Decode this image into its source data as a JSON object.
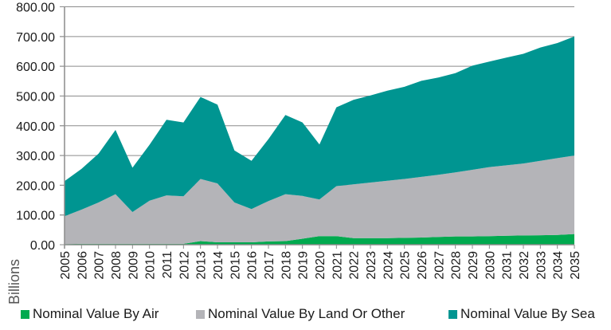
{
  "chart_data": {
    "type": "area",
    "stacked": true,
    "title": "",
    "xlabel": "",
    "ylabel": "Billions",
    "ylim": [
      0,
      800
    ],
    "yticks": [
      "0.00",
      "100.00",
      "200.00",
      "300.00",
      "400.00",
      "500.00",
      "600.00",
      "700.00",
      "800.00"
    ],
    "ytick_values": [
      0,
      100,
      200,
      300,
      400,
      500,
      600,
      700,
      800
    ],
    "grid": true,
    "legend_position": "bottom",
    "categories": [
      "2005",
      "2006",
      "2007",
      "2008",
      "2009",
      "2010",
      "2011",
      "2012",
      "2013",
      "2014",
      "2015",
      "2016",
      "2017",
      "2018",
      "2019",
      "2020",
      "2021",
      "2022",
      "2023",
      "2024",
      "2025",
      "2026",
      "2027",
      "2028",
      "2029",
      "2030",
      "2031",
      "2032",
      "2033",
      "2034",
      "2035"
    ],
    "series": [
      {
        "name": "Nominal Value By Air",
        "color": "#00AA4F",
        "values": [
          2,
          3,
          3,
          3,
          3,
          3,
          3,
          3,
          12,
          8,
          8,
          8,
          11,
          12,
          20,
          29,
          29,
          22,
          22,
          22,
          23,
          24,
          26,
          28,
          28,
          29,
          30,
          31,
          32,
          33,
          36
        ]
      },
      {
        "name": "Nominal Value By Land Or Other",
        "color": "#B4B4B8",
        "values": [
          94,
          115,
          139,
          167,
          107,
          145,
          163,
          160,
          209,
          198,
          134,
          112,
          136,
          158,
          144,
          123,
          168,
          181,
          187,
          193,
          198,
          204,
          209,
          215,
          224,
          232,
          237,
          242,
          250,
          258,
          264
        ]
      },
      {
        "name": "Nominal Value By Sea",
        "color": "#009591",
        "values": [
          118,
          137,
          164,
          216,
          149,
          188,
          254,
          248,
          276,
          265,
          175,
          162,
          208,
          266,
          247,
          185,
          265,
          284,
          293,
          303,
          310,
          323,
          327,
          334,
          350,
          355,
          362,
          369,
          381,
          387,
          400
        ]
      }
    ]
  }
}
